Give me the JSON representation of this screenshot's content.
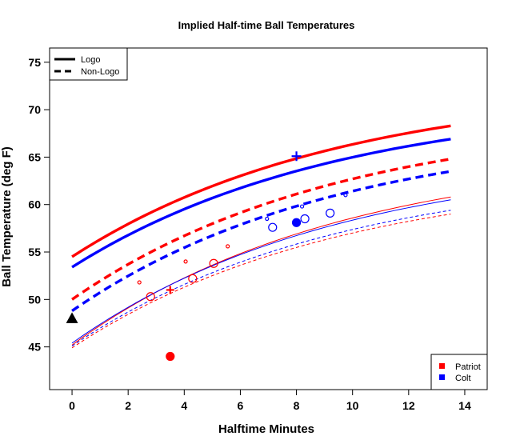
{
  "chart_data": {
    "type": "line",
    "title": "Implied Half-time Ball Temperatures",
    "xlabel": "Halftime Minutes",
    "ylabel": "Ball Temperature (deg F)",
    "xlim": [
      -0.8,
      14.8
    ],
    "ylim": [
      40.5,
      76.5
    ],
    "xticks": [
      0,
      2,
      4,
      6,
      8,
      10,
      12,
      14
    ],
    "yticks": [
      45,
      50,
      55,
      60,
      65,
      70,
      75
    ],
    "style_legend": {
      "position": "top-left",
      "entries": [
        {
          "label": "Logo",
          "dash": "solid"
        },
        {
          "label": "Non-Logo",
          "dash": "dashed"
        }
      ]
    },
    "team_legend": {
      "position": "bottom-right",
      "entries": [
        {
          "label": "Patriot",
          "color": "#ff0000"
        },
        {
          "label": "Colt",
          "color": "#0000ff"
        }
      ]
    },
    "curves": [
      {
        "name": "Patriot Logo",
        "team": "Patriot",
        "color": "#ff0000",
        "dash": "solid",
        "weight": "thick",
        "start": 54.5,
        "end": 68.3
      },
      {
        "name": "Colt Logo",
        "team": "Colt",
        "color": "#0000ff",
        "dash": "solid",
        "weight": "thick",
        "start": 53.4,
        "end": 66.9
      },
      {
        "name": "Patriot Non-Logo",
        "team": "Patriot",
        "color": "#ff0000",
        "dash": "dashed",
        "weight": "thick",
        "start": 50.0,
        "end": 64.8
      },
      {
        "name": "Colt Non-Logo",
        "team": "Colt",
        "color": "#0000ff",
        "dash": "dashed",
        "weight": "thick",
        "start": 48.8,
        "end": 63.5
      },
      {
        "name": "Patriot Logo (thin)",
        "team": "Patriot",
        "color": "#ff0000",
        "dash": "solid",
        "weight": "thin",
        "start": 45.2,
        "end": 60.8
      },
      {
        "name": "Colt Logo (thin)",
        "team": "Colt",
        "color": "#0000ff",
        "dash": "solid",
        "weight": "thin",
        "start": 45.4,
        "end": 60.5
      },
      {
        "name": "Colt Non-Logo (thin)",
        "team": "Colt",
        "color": "#0000ff",
        "dash": "dashed",
        "weight": "thin",
        "start": 45.1,
        "end": 59.4
      },
      {
        "name": "Patriot Non-Logo (thin)",
        "team": "Patriot",
        "color": "#ff0000",
        "dash": "dashed",
        "weight": "thin",
        "start": 44.9,
        "end": 59.0
      }
    ],
    "curve_x_range": [
      0,
      13.5
    ],
    "curve_tau": 9.5,
    "points": [
      {
        "x": 0.0,
        "y": 48.0,
        "shape": "triangle",
        "color": "#000000",
        "filled": true,
        "size": 6
      },
      {
        "x": 3.5,
        "y": 44.0,
        "shape": "circle",
        "color": "#ff0000",
        "filled": true,
        "size": 5
      },
      {
        "x": 3.5,
        "y": 51.0,
        "shape": "plus",
        "color": "#ff0000",
        "filled": false,
        "size": 5
      },
      {
        "x": 8.0,
        "y": 65.1,
        "shape": "plus",
        "color": "#0000ff",
        "filled": false,
        "size": 6
      },
      {
        "x": 8.0,
        "y": 58.1,
        "shape": "circle",
        "color": "#0000ff",
        "filled": true,
        "size": 5
      },
      {
        "x": 2.4,
        "y": 51.8,
        "shape": "circle",
        "color": "#ff0000",
        "filled": false,
        "size": 2
      },
      {
        "x": 2.8,
        "y": 50.3,
        "shape": "circle",
        "color": "#ff0000",
        "filled": false,
        "size": 5
      },
      {
        "x": 4.05,
        "y": 54.0,
        "shape": "circle",
        "color": "#ff0000",
        "filled": false,
        "size": 2
      },
      {
        "x": 4.3,
        "y": 52.2,
        "shape": "circle",
        "color": "#ff0000",
        "filled": false,
        "size": 5
      },
      {
        "x": 5.05,
        "y": 53.8,
        "shape": "circle",
        "color": "#ff0000",
        "filled": false,
        "size": 5
      },
      {
        "x": 5.55,
        "y": 55.6,
        "shape": "circle",
        "color": "#ff0000",
        "filled": false,
        "size": 2
      },
      {
        "x": 6.95,
        "y": 58.5,
        "shape": "circle",
        "color": "#0000ff",
        "filled": false,
        "size": 2
      },
      {
        "x": 7.15,
        "y": 57.6,
        "shape": "circle",
        "color": "#0000ff",
        "filled": false,
        "size": 5
      },
      {
        "x": 8.2,
        "y": 59.8,
        "shape": "circle",
        "color": "#0000ff",
        "filled": false,
        "size": 2
      },
      {
        "x": 8.3,
        "y": 58.5,
        "shape": "circle",
        "color": "#0000ff",
        "filled": false,
        "size": 5
      },
      {
        "x": 9.2,
        "y": 59.1,
        "shape": "circle",
        "color": "#0000ff",
        "filled": false,
        "size": 5
      },
      {
        "x": 9.75,
        "y": 61.0,
        "shape": "circle",
        "color": "#0000ff",
        "filled": false,
        "size": 2
      }
    ]
  }
}
